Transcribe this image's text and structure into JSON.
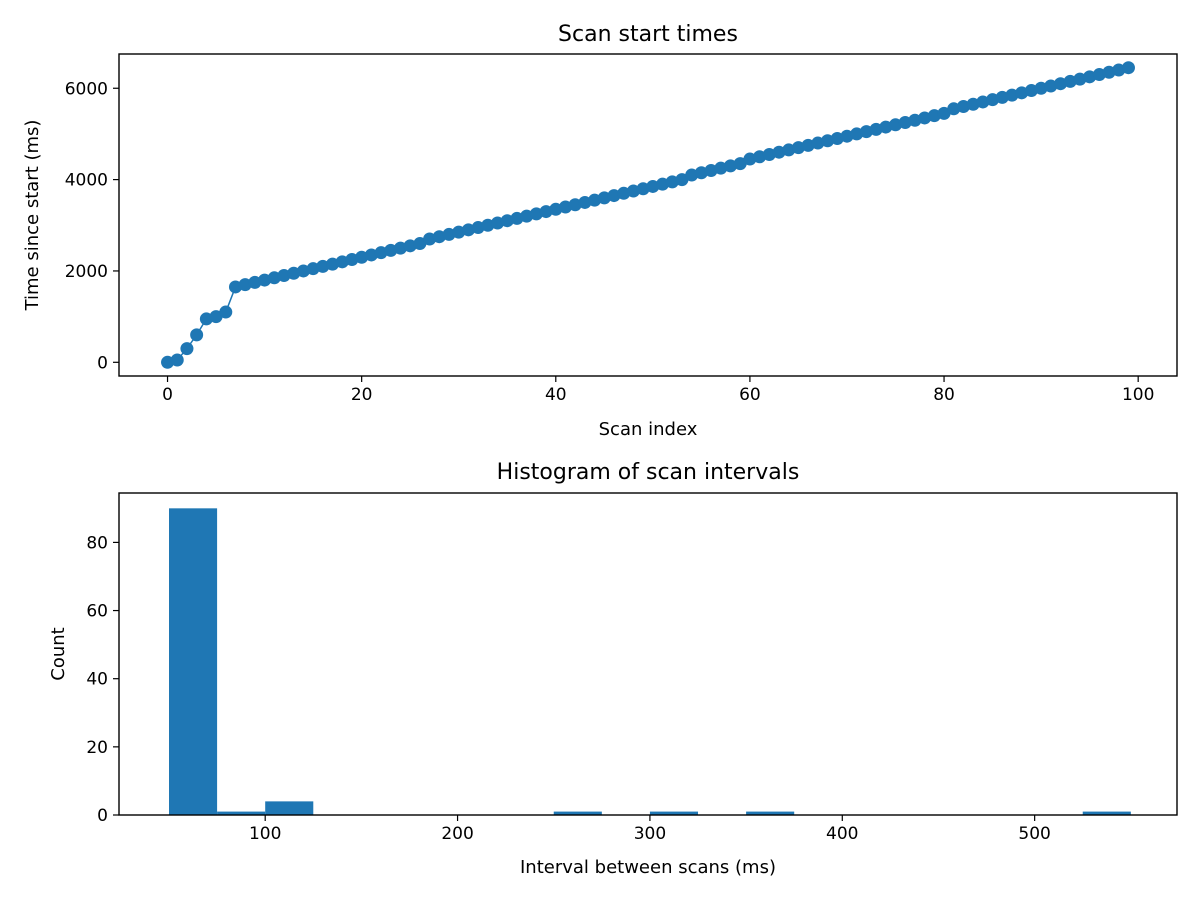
{
  "colors": {
    "series": "#1f77b4",
    "axes": "#000000",
    "background": "#ffffff"
  },
  "chart_data": [
    {
      "type": "line",
      "title": "Scan start times",
      "xlabel": "Scan index",
      "ylabel": "Time since start (ms)",
      "xlim": [
        -5,
        104
      ],
      "ylim": [
        -300,
        6750
      ],
      "x_ticks": [
        0,
        20,
        40,
        60,
        80,
        100
      ],
      "y_ticks": [
        0,
        2000,
        4000,
        6000
      ],
      "marker": "circle",
      "grid": false,
      "series": [
        {
          "x": [
            0,
            1,
            2,
            3,
            4,
            5,
            6,
            7,
            8,
            9,
            10,
            11,
            12,
            13,
            14,
            15,
            16,
            17,
            18,
            19,
            20,
            21,
            22,
            23,
            24,
            25,
            26,
            27,
            28,
            29,
            30,
            31,
            32,
            33,
            34,
            35,
            36,
            37,
            38,
            39,
            40,
            41,
            42,
            43,
            44,
            45,
            46,
            47,
            48,
            49,
            50,
            51,
            52,
            53,
            54,
            55,
            56,
            57,
            58,
            59,
            60,
            61,
            62,
            63,
            64,
            65,
            66,
            67,
            68,
            69,
            70,
            71,
            72,
            73,
            74,
            75,
            76,
            77,
            78,
            79,
            80,
            81,
            82,
            83,
            84,
            85,
            86,
            87,
            88,
            89,
            90,
            91,
            92,
            93,
            94,
            95,
            96,
            97,
            98,
            99
          ],
          "y": [
            0,
            50,
            300,
            600,
            950,
            1000,
            1100,
            1650,
            1700,
            1750,
            1800,
            1850,
            1900,
            1950,
            2000,
            2050,
            2100,
            2150,
            2200,
            2250,
            2300,
            2350,
            2400,
            2450,
            2500,
            2550,
            2600,
            2700,
            2750,
            2800,
            2850,
            2900,
            2950,
            3000,
            3050,
            3100,
            3150,
            3200,
            3250,
            3300,
            3350,
            3400,
            3450,
            3500,
            3550,
            3600,
            3650,
            3700,
            3750,
            3800,
            3850,
            3900,
            3950,
            4000,
            4100,
            4150,
            4200,
            4250,
            4300,
            4350,
            4450,
            4500,
            4550,
            4600,
            4650,
            4700,
            4750,
            4800,
            4850,
            4900,
            4950,
            5000,
            5050,
            5100,
            5150,
            5200,
            5250,
            5300,
            5350,
            5400,
            5450,
            5550,
            5600,
            5650,
            5700,
            5750,
            5800,
            5850,
            5900,
            5950,
            6000,
            6050,
            6100,
            6150,
            6200,
            6250,
            6300,
            6350,
            6400,
            6450
          ]
        }
      ]
    },
    {
      "type": "bar",
      "title": "Histogram of scan intervals",
      "xlabel": "Interval between scans (ms)",
      "ylabel": "Count",
      "xlim": [
        24,
        574
      ],
      "ylim": [
        0,
        94.5
      ],
      "x_ticks": [
        100,
        200,
        300,
        400,
        500
      ],
      "y_ticks": [
        0,
        20,
        40,
        60,
        80
      ],
      "grid": false,
      "bins": [
        {
          "start": 50,
          "end": 75,
          "count": 90
        },
        {
          "start": 75,
          "end": 100,
          "count": 1
        },
        {
          "start": 100,
          "end": 125,
          "count": 4
        },
        {
          "start": 250,
          "end": 275,
          "count": 1
        },
        {
          "start": 300,
          "end": 325,
          "count": 1
        },
        {
          "start": 350,
          "end": 375,
          "count": 1
        },
        {
          "start": 525,
          "end": 550,
          "count": 1
        }
      ]
    }
  ]
}
